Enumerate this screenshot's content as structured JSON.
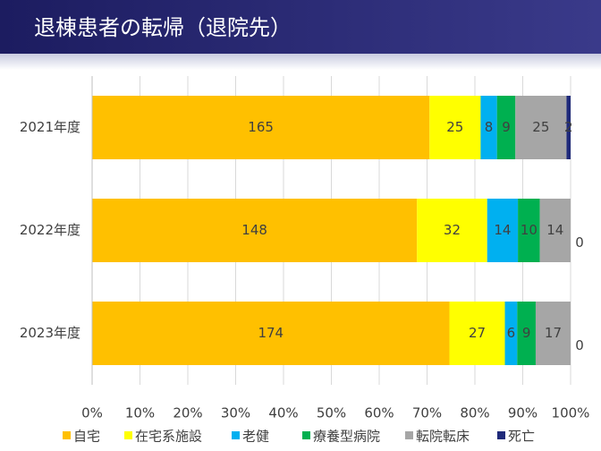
{
  "chart_data": {
    "type": "bar",
    "orientation": "horizontal",
    "stack": "percent",
    "title": "退棟患者の転帰（退院先）",
    "categories": [
      "2021年度",
      "2022年度",
      "2023年度"
    ],
    "series": [
      {
        "name": "自宅",
        "color": "#FFC000",
        "values": [
          165,
          148,
          174
        ]
      },
      {
        "name": "在宅系施設",
        "color": "#FFFF00",
        "values": [
          25,
          32,
          27
        ]
      },
      {
        "name": "老健",
        "color": "#00B0F0",
        "values": [
          8,
          14,
          6
        ]
      },
      {
        "name": "療養型病院",
        "color": "#00B050",
        "values": [
          9,
          10,
          9
        ]
      },
      {
        "name": "転院転床",
        "color": "#A6A6A6",
        "values": [
          25,
          14,
          17
        ]
      },
      {
        "name": "死亡",
        "color": "#1F2A7A",
        "values": [
          2,
          0,
          0
        ]
      }
    ],
    "xlim": [
      0,
      100
    ],
    "xticks": [
      {
        "value": 0,
        "label": "0%"
      },
      {
        "value": 10,
        "label": "10%"
      },
      {
        "value": 20,
        "label": "20%"
      },
      {
        "value": 30,
        "label": "30%"
      },
      {
        "value": 40,
        "label": "40%"
      },
      {
        "value": 50,
        "label": "50%"
      },
      {
        "value": 60,
        "label": "60%"
      },
      {
        "value": 70,
        "label": "70%"
      },
      {
        "value": 80,
        "label": "80%"
      },
      {
        "value": 90,
        "label": "90%"
      },
      {
        "value": 100,
        "label": "100%"
      }
    ],
    "grid": true,
    "legend": "bottom"
  }
}
